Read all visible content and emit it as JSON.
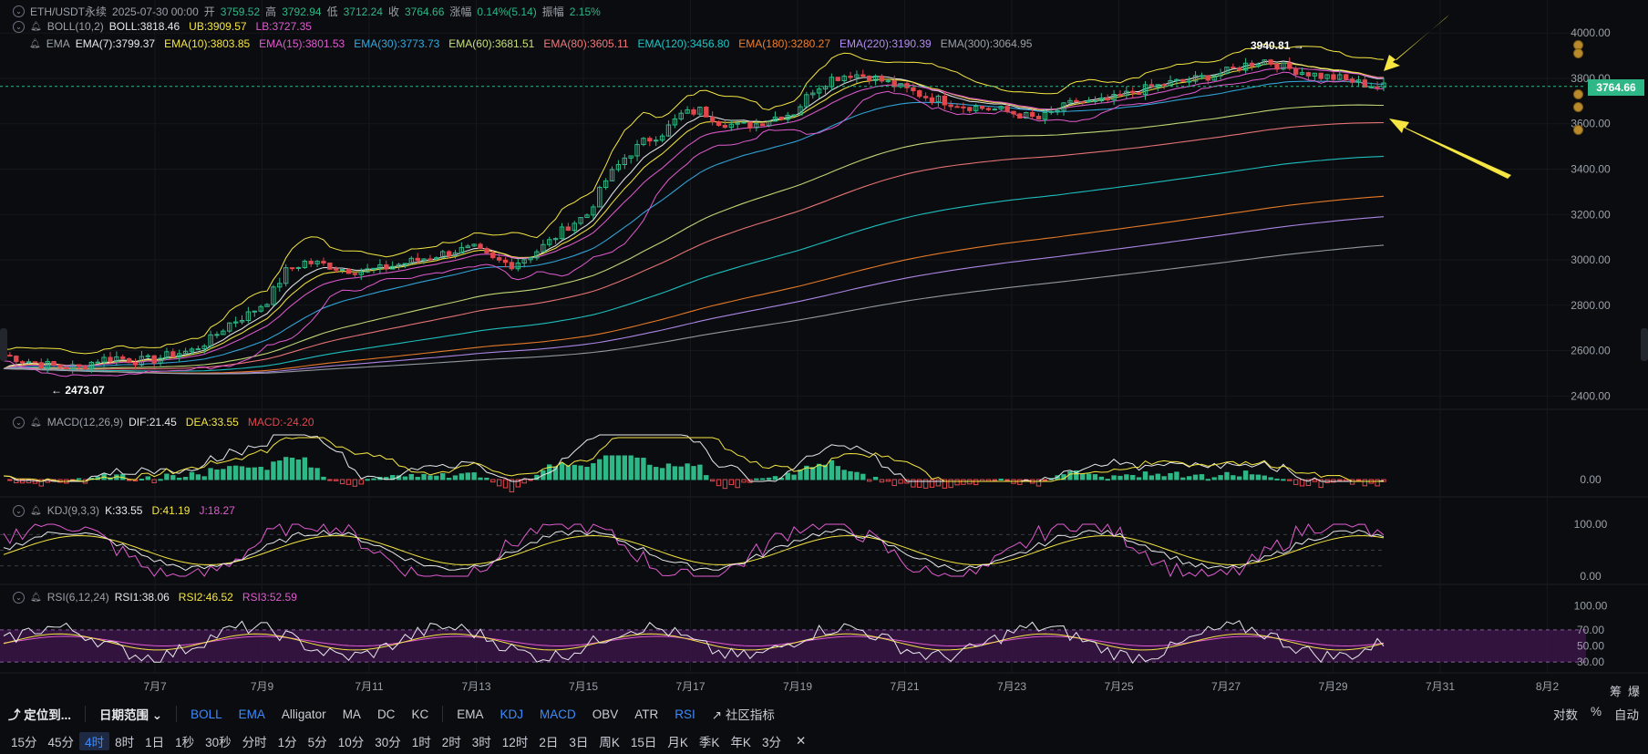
{
  "header": {
    "symbol": "ETH/USDT永续",
    "datetime": "2025-07-30 00:00",
    "open_label": "开",
    "open": "3759.52",
    "high_label": "高",
    "high": "3792.94",
    "low_label": "低",
    "low": "3712.24",
    "close_label": "收",
    "close": "3764.66",
    "change_label": "涨幅",
    "change": "0.14%(5.14)",
    "amp_label": "振幅",
    "amp": "2.15%"
  },
  "boll_legend": {
    "name": "BOLL(10,2)",
    "items": [
      {
        "text": "BOLL:3818.46",
        "color": "#e6e8eb"
      },
      {
        "text": "UB:3909.57",
        "color": "#f5e642"
      },
      {
        "text": "LB:3727.35",
        "color": "#e05bd0"
      }
    ]
  },
  "ema_legend": {
    "name": "EMA",
    "items": [
      {
        "text": "EMA(7):3799.37",
        "color": "#e6e8eb"
      },
      {
        "text": "EMA(10):3803.85",
        "color": "#f5e642"
      },
      {
        "text": "EMA(15):3801.53",
        "color": "#e05bd0"
      },
      {
        "text": "EMA(30):3773.73",
        "color": "#33a9e0"
      },
      {
        "text": "EMA(60):3681.51",
        "color": "#c7e07a"
      },
      {
        "text": "EMA(80):3605.11",
        "color": "#f0787a"
      },
      {
        "text": "EMA(120):3456.80",
        "color": "#1fc7c7"
      },
      {
        "text": "EMA(180):3280.27",
        "color": "#f07f2a"
      },
      {
        "text": "EMA(220):3190.39",
        "color": "#b38cf0"
      },
      {
        "text": "EMA(300):3064.95",
        "color": "#9aa0a8"
      }
    ]
  },
  "macd_legend": {
    "name": "MACD(12,26,9)",
    "items": [
      {
        "text": "DIF:21.45",
        "color": "#e6e8eb"
      },
      {
        "text": "DEA:33.55",
        "color": "#f5e642"
      },
      {
        "text": "MACD:-24.20",
        "color": "#e0474c"
      }
    ]
  },
  "kdj_legend": {
    "name": "KDJ(9,3,3)",
    "items": [
      {
        "text": "K:33.55",
        "color": "#e6e8eb"
      },
      {
        "text": "D:41.19",
        "color": "#f5e642"
      },
      {
        "text": "J:18.27",
        "color": "#e05bd0"
      }
    ]
  },
  "rsi_legend": {
    "name": "RSI(6,12,24)",
    "items": [
      {
        "text": "RSI1:38.06",
        "color": "#e6e8eb"
      },
      {
        "text": "RSI2:46.52",
        "color": "#f5e642"
      },
      {
        "text": "RSI3:52.59",
        "color": "#e05bd0"
      }
    ]
  },
  "current_price": "3764.66",
  "annotations": {
    "high_label": "3940.81",
    "low_label": "2473.07"
  },
  "colors": {
    "up": "#2eb887",
    "down": "#e0474c",
    "bg": "#0b0c0f",
    "accent": "#3a8bff",
    "arrow": "#f5e642"
  },
  "toolbar": {
    "locate": "定位到...",
    "date_range": "日期范围",
    "indicators": [
      {
        "label": "BOLL",
        "active": true
      },
      {
        "label": "EMA",
        "active": true
      },
      {
        "label": "Alligator",
        "active": false
      },
      {
        "label": "MA",
        "active": false
      },
      {
        "label": "DC",
        "active": false
      },
      {
        "label": "KC",
        "active": false
      }
    ],
    "sub_indicators": [
      {
        "label": "EMA",
        "active": false
      },
      {
        "label": "KDJ",
        "active": true
      },
      {
        "label": "MACD",
        "active": true
      },
      {
        "label": "OBV",
        "active": false
      },
      {
        "label": "ATR",
        "active": false
      },
      {
        "label": "RSI",
        "active": true
      }
    ],
    "community": "社区指标",
    "right": [
      "对数",
      "%",
      "自动"
    ]
  },
  "timeframes": [
    {
      "label": "15分",
      "active": false
    },
    {
      "label": "45分",
      "active": false
    },
    {
      "label": "4时",
      "active": true
    },
    {
      "label": "8时",
      "active": false
    },
    {
      "label": "1日",
      "active": false
    },
    {
      "label": "1秒",
      "active": false
    },
    {
      "label": "30秒",
      "active": false
    },
    {
      "label": "分时",
      "active": false
    },
    {
      "label": "1分",
      "active": false
    },
    {
      "label": "5分",
      "active": false
    },
    {
      "label": "10分",
      "active": false
    },
    {
      "label": "30分",
      "active": false
    },
    {
      "label": "1时",
      "active": false
    },
    {
      "label": "2时",
      "active": false
    },
    {
      "label": "3时",
      "active": false
    },
    {
      "label": "12时",
      "active": false
    },
    {
      "label": "2日",
      "active": false
    },
    {
      "label": "3日",
      "active": false
    },
    {
      "label": "周K",
      "active": false
    },
    {
      "label": "15日",
      "active": false
    },
    {
      "label": "月K",
      "active": false
    },
    {
      "label": "季K",
      "active": false
    },
    {
      "label": "年K",
      "active": false
    },
    {
      "label": "3分",
      "active": false
    }
  ],
  "top_right_labels": [
    "筹",
    "爆"
  ],
  "chart_data": {
    "type": "candlestick",
    "main": {
      "y_ticks": [
        "4000.00",
        "3800.00",
        "3600.00",
        "3400.00",
        "3200.00",
        "3000.00",
        "2800.00",
        "2600.00",
        "2400.00"
      ],
      "ylim": [
        2345,
        4025
      ],
      "x_ticks": [
        "7月7",
        "7月9",
        "7月11",
        "7月13",
        "7月15",
        "7月17",
        "7月19",
        "7月21",
        "7月23",
        "7月25",
        "7月27",
        "7月29",
        "7月31",
        "8月2"
      ],
      "close_path": [
        [
          0,
          2580
        ],
        [
          3,
          2560
        ],
        [
          6,
          2540
        ],
        [
          9,
          2530
        ],
        [
          12,
          2525
        ],
        [
          15,
          2560
        ],
        [
          18,
          2570
        ],
        [
          21,
          2555
        ],
        [
          24,
          2560
        ],
        [
          27,
          2585
        ],
        [
          30,
          2600
        ],
        [
          33,
          2650
        ],
        [
          36,
          2720
        ],
        [
          39,
          2760
        ],
        [
          42,
          2820
        ],
        [
          45,
          2950
        ],
        [
          48,
          2990
        ],
        [
          51,
          2980
        ],
        [
          54,
          2960
        ],
        [
          57,
          2950
        ],
        [
          60,
          2960
        ],
        [
          63,
          2980
        ],
        [
          66,
          3000
        ],
        [
          69,
          3020
        ],
        [
          72,
          3040
        ],
        [
          75,
          3050
        ],
        [
          78,
          3000
        ],
        [
          81,
          2980
        ],
        [
          84,
          3020
        ],
        [
          87,
          3080
        ],
        [
          90,
          3150
        ],
        [
          93,
          3200
        ],
        [
          96,
          3350
        ],
        [
          99,
          3450
        ],
        [
          102,
          3520
        ],
        [
          105,
          3560
        ],
        [
          108,
          3640
        ],
        [
          111,
          3660
        ],
        [
          114,
          3610
        ],
        [
          117,
          3590
        ],
        [
          120,
          3600
        ],
        [
          123,
          3630
        ],
        [
          126,
          3650
        ],
        [
          129,
          3750
        ],
        [
          132,
          3800
        ],
        [
          135,
          3820
        ],
        [
          138,
          3810
        ],
        [
          141,
          3780
        ],
        [
          144,
          3750
        ],
        [
          147,
          3720
        ],
        [
          150,
          3700
        ],
        [
          153,
          3680
        ],
        [
          156,
          3670
        ],
        [
          159,
          3660
        ],
        [
          162,
          3640
        ],
        [
          165,
          3620
        ],
        [
          168,
          3660
        ],
        [
          171,
          3700
        ],
        [
          174,
          3690
        ],
        [
          177,
          3710
        ],
        [
          180,
          3740
        ],
        [
          183,
          3760
        ],
        [
          186,
          3780
        ],
        [
          189,
          3790
        ],
        [
          192,
          3810
        ],
        [
          195,
          3830
        ],
        [
          198,
          3860
        ],
        [
          201,
          3880
        ],
        [
          204,
          3850
        ],
        [
          207,
          3830
        ],
        [
          210,
          3810
        ],
        [
          213,
          3800
        ],
        [
          216,
          3780
        ],
        [
          219,
          3764
        ]
      ],
      "ema": [
        {
          "name": "EMA(7)",
          "color": "#e6e8eb",
          "end": 3799.37
        },
        {
          "name": "EMA(10)",
          "color": "#f5e642",
          "end": 3803.85
        },
        {
          "name": "EMA(15)",
          "color": "#e05bd0",
          "end": 3801.53
        },
        {
          "name": "EMA(30)",
          "color": "#33a9e0",
          "end": 3773.73
        },
        {
          "name": "EMA(60)",
          "color": "#c7e07a",
          "end": 3681.51
        },
        {
          "name": "EMA(80)",
          "color": "#f0787a",
          "end": 3605.11
        },
        {
          "name": "EMA(120)",
          "color": "#1fc7c7",
          "end": 3456.8
        },
        {
          "name": "EMA(180)",
          "color": "#f07f2a",
          "end": 3280.27
        },
        {
          "name": "EMA(220)",
          "color": "#b38cf0",
          "end": 3190.39
        },
        {
          "name": "EMA(300)",
          "color": "#9aa0a8",
          "end": 3064.95
        }
      ],
      "boll": {
        "mid": 3818.46,
        "ub": 3909.57,
        "lb": 3727.35
      }
    },
    "macd": {
      "dif": 21.45,
      "dea": 33.55,
      "macd": -24.2,
      "y_ticks": [
        "0.00"
      ]
    },
    "kdj": {
      "k": 33.55,
      "d": 41.19,
      "j": 18.27,
      "y_ticks": [
        "100.00",
        "0.00"
      ]
    },
    "rsi": {
      "rsi1": 38.06,
      "rsi2": 46.52,
      "rsi3": 52.59,
      "y_ticks": [
        "100.00",
        "70.00",
        "50.00",
        "30.00"
      ]
    }
  }
}
